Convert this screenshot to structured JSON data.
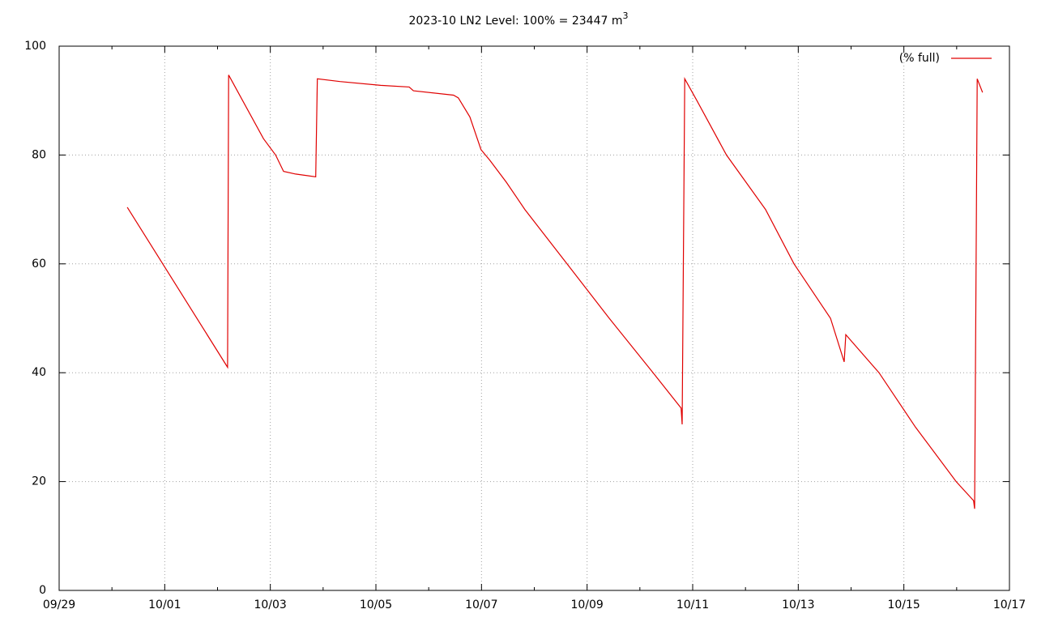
{
  "chart_data": {
    "type": "line",
    "title": "2023-10 LN2 Level: 100% = 23447 m",
    "title_superscript": "3",
    "x": [
      1.29,
      3.19,
      3.21,
      3.87,
      4.1,
      4.25,
      4.48,
      4.86,
      4.89,
      5.32,
      6.09,
      6.63,
      6.71,
      7.47,
      7.56,
      7.78,
      7.99,
      8.16,
      8.47,
      8.82,
      9.62,
      10.42,
      11.25,
      11.78,
      11.8,
      11.85,
      12.08,
      12.64,
      13.38,
      13.92,
      14.61,
      14.87,
      14.9,
      15.53,
      16.22,
      16.99,
      17.32,
      17.34,
      17.39,
      17.49
    ],
    "series": [
      {
        "name": "(% full)",
        "color": "#e00000",
        "values": [
          70.4,
          41,
          94.7,
          83,
          80,
          77,
          76.5,
          76,
          94,
          93.5,
          92.8,
          92.5,
          91.8,
          91,
          90.5,
          87,
          81,
          79,
          75,
          70,
          60,
          50,
          40,
          33.5,
          30.5,
          94,
          90,
          80,
          70,
          60,
          50,
          42,
          47,
          40,
          30,
          20,
          16.5,
          15,
          94,
          91.5
        ]
      }
    ],
    "xlim": [
      0,
      18
    ],
    "xticks": [
      {
        "value": 0,
        "label": "09/29"
      },
      {
        "value": 2,
        "label": "10/01"
      },
      {
        "value": 4,
        "label": "10/03"
      },
      {
        "value": 6,
        "label": "10/05"
      },
      {
        "value": 8,
        "label": "10/07"
      },
      {
        "value": 10,
        "label": "10/09"
      },
      {
        "value": 12,
        "label": "10/11"
      },
      {
        "value": 14,
        "label": "10/13"
      },
      {
        "value": 16,
        "label": "10/15"
      },
      {
        "value": 18,
        "label": "10/17"
      }
    ],
    "xminorticks": [
      1,
      3,
      5,
      7,
      9,
      11,
      13,
      15,
      17
    ],
    "ylim": [
      0,
      100
    ],
    "yticks": [
      0,
      20,
      40,
      60,
      80,
      100
    ],
    "grid": true,
    "legend": "top-right"
  }
}
